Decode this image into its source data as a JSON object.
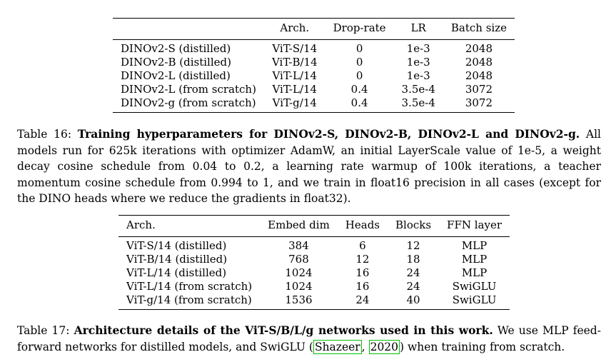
{
  "table16": {
    "headers": [
      "",
      "Arch.",
      "Drop-rate",
      "LR",
      "Batch size"
    ],
    "rows": [
      [
        "DINOv2-S (distilled)",
        "ViT-S/14",
        "0",
        "1e-3",
        "2048"
      ],
      [
        "DINOv2-B (distilled)",
        "ViT-B/14",
        "0",
        "1e-3",
        "2048"
      ],
      [
        "DINOv2-L (distilled)",
        "ViT-L/14",
        "0",
        "1e-3",
        "2048"
      ],
      [
        "DINOv2-L (from scratch)",
        "ViT-L/14",
        "0.4",
        "3.5e-4",
        "3072"
      ],
      [
        "DINOv2-g (from scratch)",
        "ViT-g/14",
        "0.4",
        "3.5e-4",
        "3072"
      ]
    ]
  },
  "caption16": {
    "label": "Table 16:",
    "title": "Training hyperparameters for DINOv2-S, DINOv2-B, DINOv2-L and DINOv2-g.",
    "body": "All models run for 625k iterations with optimizer AdamW, an initial LayerScale value of 1e-5, a weight decay cosine schedule from 0.04 to 0.2, a learning rate warmup of 100k iterations, a teacher momentum cosine schedule from 0.994 to 1, and we train in float16 precision in all cases (except for the DINO heads where we reduce the gradients in float32)."
  },
  "table17": {
    "headers": [
      "Arch.",
      "Embed dim",
      "Heads",
      "Blocks",
      "FFN layer"
    ],
    "rows": [
      [
        "ViT-S/14 (distilled)",
        "384",
        "6",
        "12",
        "MLP"
      ],
      [
        "ViT-B/14 (distilled)",
        "768",
        "12",
        "18",
        "MLP"
      ],
      [
        "ViT-L/14 (distilled)",
        "1024",
        "16",
        "24",
        "MLP"
      ],
      [
        "ViT-L/14 (from scratch)",
        "1024",
        "16",
        "24",
        "SwiGLU"
      ],
      [
        "ViT-g/14 (from scratch)",
        "1536",
        "24",
        "40",
        "SwiGLU"
      ]
    ]
  },
  "caption17": {
    "label": "Table 17:",
    "title": "Architecture details of the ViT-S/B/L/g networks used in this work.",
    "body_before": "We use MLP feed-forward networks for distilled models, and SwiGLU (",
    "cite_author": "Shazeer",
    "cite_sep": ", ",
    "cite_year": "2020",
    "body_after": ") when training from scratch."
  }
}
